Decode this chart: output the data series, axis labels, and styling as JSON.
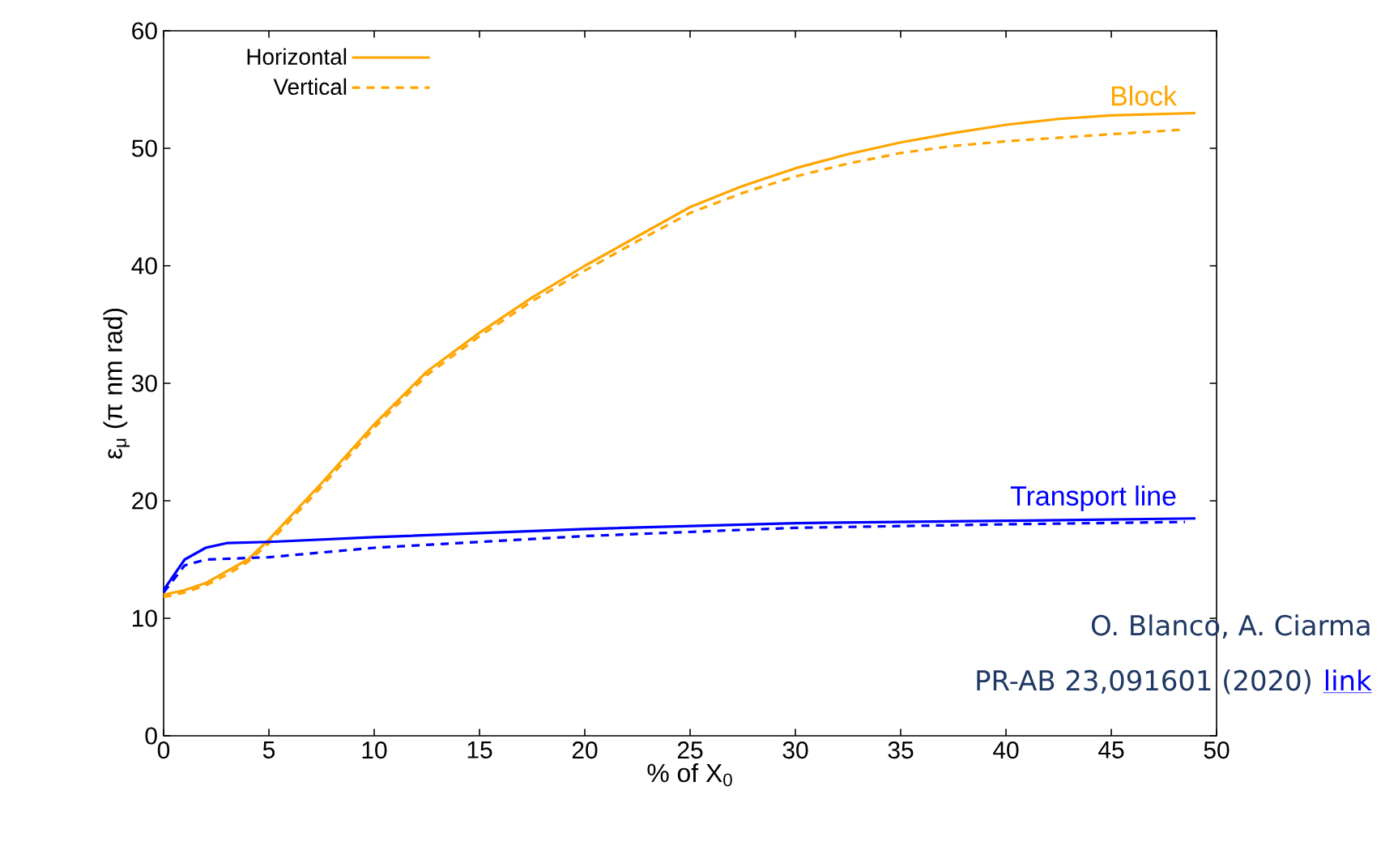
{
  "chart_data": {
    "type": "line",
    "xlabel": "% of X$_{0}$",
    "ylabel": "ε$_{μ}$ (π nm rad)",
    "xlim": [
      0,
      50
    ],
    "ylim": [
      0,
      60
    ],
    "xticks": [
      0,
      5,
      10,
      15,
      20,
      25,
      30,
      35,
      40,
      45,
      50
    ],
    "yticks": [
      0,
      10,
      20,
      30,
      40,
      50,
      60
    ],
    "legend": "top left",
    "grid": false,
    "marker": "none",
    "series": [
      {
        "name": "Horizontal",
        "color": "#ffa500",
        "line_style": "solid",
        "x": [
          0,
          1,
          2,
          3,
          4,
          5,
          7.5,
          10,
          12.5,
          15,
          17.5,
          20,
          22.5,
          25,
          27.5,
          30,
          32.5,
          35,
          37.5,
          40,
          42.5,
          45,
          49
        ],
        "values": [
          12,
          12.4,
          13,
          14,
          15,
          16.7,
          21.5,
          26.5,
          31,
          34.3,
          37.3,
          40,
          42.5,
          45,
          46.8,
          48.3,
          49.5,
          50.5,
          51.3,
          52,
          52.5,
          52.8,
          53
        ]
      },
      {
        "name": "Vertical",
        "color": "#ffa500",
        "line_style": "dashed",
        "x": [
          0,
          1,
          2,
          3,
          4,
          5,
          7.5,
          10,
          12.5,
          15,
          17.5,
          20,
          22.5,
          25,
          27.5,
          30,
          32.5,
          35,
          37.5,
          40,
          42.5,
          45,
          48.5
        ],
        "values": [
          11.8,
          12.2,
          12.8,
          13.7,
          14.8,
          16.4,
          21.2,
          26.2,
          30.7,
          34,
          37,
          39.6,
          42.1,
          44.5,
          46.2,
          47.6,
          48.7,
          49.6,
          50.2,
          50.6,
          50.9,
          51.2,
          51.6
        ]
      },
      {
        "color": "#0000ff",
        "line_style": "solid",
        "x": [
          0,
          1,
          2,
          3,
          5,
          10,
          20,
          30,
          40,
          49
        ],
        "values": [
          12.4,
          15,
          16,
          16.4,
          16.5,
          16.9,
          17.6,
          18.1,
          18.3,
          18.5
        ]
      },
      {
        "color": "#0000ff",
        "line_style": "dashed",
        "x": [
          0,
          1,
          2,
          5,
          10,
          20,
          30,
          40,
          48.5
        ],
        "values": [
          12.2,
          14.5,
          15,
          15.2,
          16,
          17,
          17.7,
          18,
          18.2
        ]
      }
    ],
    "annotations": [
      "Block",
      "Transport line",
      "O. Blanco, A. Ciarma",
      "PR-AB 23,091601 (2020)",
      "link"
    ]
  }
}
